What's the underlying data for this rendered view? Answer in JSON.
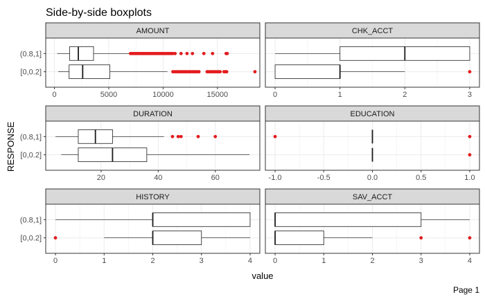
{
  "chart_data": {
    "type": "boxplot",
    "title": "Side-by-side boxplots",
    "xlabel": "value",
    "ylabel": "RESPONSE",
    "categories": [
      "(0.8,1]",
      "[0,0.2]"
    ],
    "footer": "Page 1",
    "outlier_color": "#e31a1c",
    "strip_color": "#d9d9d9",
    "panels": [
      {
        "name": "AMOUNT",
        "xlim": [
          -800,
          18900
        ],
        "ticks": [
          0,
          5000,
          10000,
          15000
        ],
        "tick_labels": [
          "0",
          "5000",
          "10000",
          "15000"
        ],
        "boxes": [
          {
            "category": "(0.8,1]",
            "min": 250,
            "q1": 1400,
            "median": 2200,
            "q3": 3600,
            "max": 6950,
            "outliers": [
              7000,
              7150,
              7300,
              7450,
              7600,
              7750,
              7900,
              8050,
              8200,
              8350,
              8500,
              8650,
              8800,
              8950,
              9100,
              9250,
              9400,
              9550,
              9700,
              9850,
              10000,
              10150,
              10300,
              10450,
              10600,
              10750,
              10900,
              11100,
              11650,
              12200,
              12700,
              13750,
              14550,
              15800,
              15900
            ]
          },
          {
            "category": "[0,0.2]",
            "min": 350,
            "q1": 1350,
            "median": 2600,
            "q3": 5100,
            "max": 10400,
            "outliers": [
              10900,
              11050,
              11200,
              11350,
              11500,
              11650,
              11800,
              11950,
              12100,
              12250,
              12400,
              12550,
              12700,
              12850,
              13000,
              13150,
              13300,
              14050,
              14200,
              14350,
              14500,
              14650,
              14800,
              14950,
              15100,
              15250,
              15600,
              15750,
              15850,
              18450
            ]
          }
        ]
      },
      {
        "name": "CHK_ACCT",
        "xlim": [
          -0.15,
          3.15
        ],
        "ticks": [
          0,
          1,
          2,
          3
        ],
        "tick_labels": [
          "0",
          "1",
          "2",
          "3"
        ],
        "boxes": [
          {
            "category": "(0.8,1]",
            "min": 0,
            "q1": 1,
            "median": 2,
            "q3": 3,
            "max": 3,
            "outliers": []
          },
          {
            "category": "[0,0.2]",
            "min": 0,
            "q1": 0,
            "median": 1,
            "q3": 1,
            "max": 2,
            "outliers": [
              3
            ]
          }
        ]
      },
      {
        "name": "DURATION",
        "xlim": [
          0.6,
          75.6
        ],
        "ticks": [
          20,
          40,
          60
        ],
        "tick_labels": [
          "20",
          "40",
          "60"
        ],
        "boxes": [
          {
            "category": "(0.8,1]",
            "min": 4,
            "q1": 12,
            "median": 18,
            "q3": 24,
            "max": 42,
            "outliers": [
              45,
              47,
              48,
              54,
              60
            ]
          },
          {
            "category": "[0,0.2]",
            "min": 6,
            "q1": 12,
            "median": 24,
            "q3": 36,
            "max": 72,
            "outliers": []
          }
        ]
      },
      {
        "name": "EDUCATION",
        "xlim": [
          -1.1,
          1.1
        ],
        "ticks": [
          -1.0,
          -0.5,
          0.0,
          0.5,
          1.0
        ],
        "tick_labels": [
          "-1.0",
          "-0.5",
          "0.0",
          "0.5",
          "1.0"
        ],
        "boxes": [
          {
            "category": "(0.8,1]",
            "min": 0,
            "q1": 0,
            "median": 0,
            "q3": 0,
            "max": 0,
            "outliers": [
              -1,
              1
            ]
          },
          {
            "category": "[0,0.2]",
            "min": 0,
            "q1": 0,
            "median": 0,
            "q3": 0,
            "max": 0,
            "outliers": [
              1
            ]
          }
        ]
      },
      {
        "name": "HISTORY",
        "xlim": [
          -0.2,
          4.2
        ],
        "ticks": [
          0,
          1,
          2,
          3,
          4
        ],
        "tick_labels": [
          "0",
          "1",
          "2",
          "3",
          "4"
        ],
        "boxes": [
          {
            "category": "(0.8,1]",
            "min": 0,
            "q1": 2,
            "median": 2,
            "q3": 4,
            "max": 4,
            "outliers": []
          },
          {
            "category": "[0,0.2]",
            "min": 1,
            "q1": 2,
            "median": 2,
            "q3": 3,
            "max": 4,
            "outliers": [
              0
            ]
          }
        ]
      },
      {
        "name": "SAV_ACCT",
        "xlim": [
          -0.2,
          4.2
        ],
        "ticks": [
          0,
          1,
          2,
          3,
          4
        ],
        "tick_labels": [
          "0",
          "1",
          "2",
          "3",
          "4"
        ],
        "boxes": [
          {
            "category": "(0.8,1]",
            "min": 0,
            "q1": 0,
            "median": 0,
            "q3": 3,
            "max": 4,
            "outliers": []
          },
          {
            "category": "[0,0.2]",
            "min": 0,
            "q1": 0,
            "median": 0,
            "q3": 1,
            "max": 2,
            "outliers": [
              3,
              4
            ]
          }
        ]
      }
    ]
  }
}
